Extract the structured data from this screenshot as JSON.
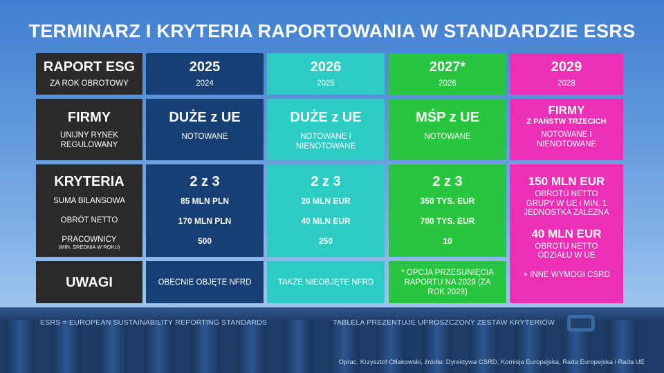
{
  "title": "TERMINARZ I KRYTERIA RAPORTOWANIA W STANDARDZIE ESRS",
  "rows": {
    "report": {
      "label": "RAPORT ESG",
      "sublabel": "ZA ROK OBROTOWY",
      "cols": [
        {
          "year": "2025",
          "fiscal": "2024"
        },
        {
          "year": "2026",
          "fiscal": "2025"
        },
        {
          "year": "2027*",
          "fiscal": "2026"
        },
        {
          "year": "2029",
          "fiscal": "2028"
        }
      ]
    },
    "firms": {
      "label": "FIRMY",
      "sublabel": "UNIJNY RYNEK REGULOWANY",
      "cols": [
        {
          "name": "DUŻE z UE",
          "note": "NOTOWANE"
        },
        {
          "name": "DUŻE z UE",
          "note": "NOTOWANE I NIENOTOWANE"
        },
        {
          "name": "MŚP z UE",
          "note": "NOTOWANE"
        },
        {
          "name": "FIRMY",
          "name2": "Z PAŃSTW TRZECICH",
          "note": "NOTOWANE I NIENOTOWANE"
        }
      ]
    },
    "criteria": {
      "label": "KRYTERIA",
      "items": [
        "SUMA BILANSOWA",
        "OBRÓT NETTO",
        "PRACOWNICY"
      ],
      "items_note": "(MIN. ŚREDNIA W ROKU)",
      "cols": [
        {
          "head": "2 z 3",
          "v1": "85 MLN PLN",
          "v2": "170 MLN PLN",
          "v3": "500"
        },
        {
          "head": "2 z 3",
          "v1": "20 MLN EUR",
          "v2": "40 MLN EUR",
          "v3": "250"
        },
        {
          "head": "2 z 3",
          "v1": "350 TYS. EUR",
          "v2": "700 TYS. EUR",
          "v3": "10"
        }
      ],
      "third_country": {
        "head1": "150 MLN EUR",
        "text1": "OBROTU NETTO GRUPY W UE i MIN. 1 JEDNOSTKA ZALEZNA",
        "head2": "40 MLN EUR",
        "text2": "OBROTU NETTO ODZIAŁU W UE",
        "extra": "+ INNE WYMOGI CSRD"
      }
    },
    "notes": {
      "label": "UWAGI",
      "cols": [
        "OBECNIE OBJĘTE NFRD",
        "TAKŻE NIEOBJĘTE NFRD",
        "* OPCJA PRZESUNIĘCIA RAPORTU NA 2029 (ZA ROK  2028)"
      ]
    }
  },
  "footer": {
    "left": "ESRS = EUROPEAN SUSTAINABILITY REPORTING STANDARDS",
    "right": "TABLELA PREZENTUJE UPROSZCZONY ZESTAW KRYTERIÓW",
    "credit": "Oprac. Krzysztof Oflakowski, źródła: Dyrektywa CSRD, Komisja Europejska, Rada Europejska i Rada UE"
  },
  "colors": {
    "label_bg": "#2a2a2a",
    "col_2025": "#173f73",
    "col_2026": "#2ccbc4",
    "col_2027": "#27c63e",
    "col_2029": "#ec2fb4"
  }
}
